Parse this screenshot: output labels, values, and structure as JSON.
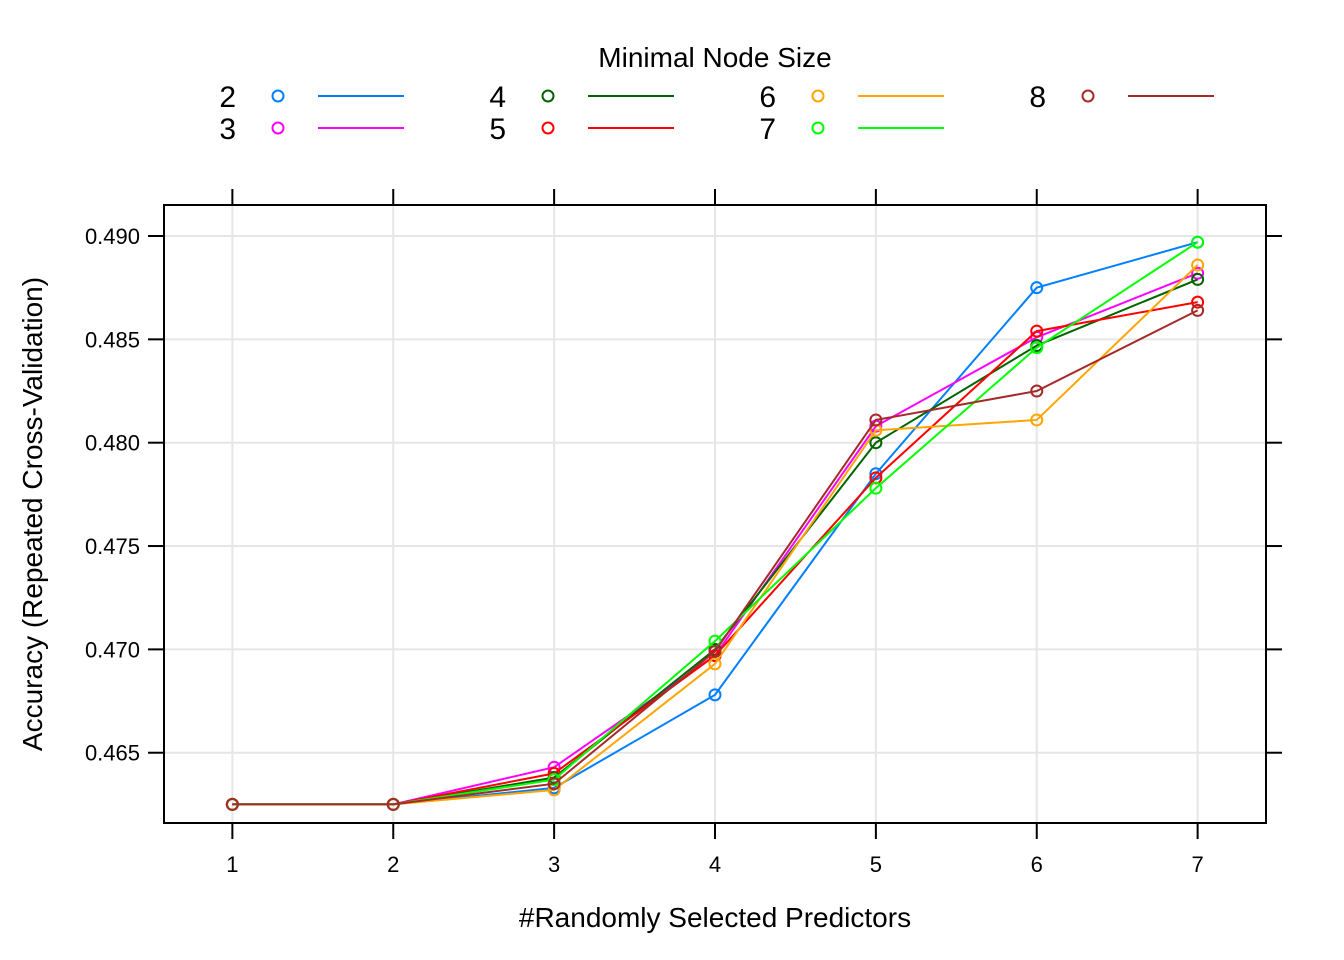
{
  "chart_data": {
    "type": "line",
    "xlabel": "#Randomly Selected Predictors",
    "ylabel": "Accuracy (Repeated Cross-Validation)",
    "legend_title": "Minimal Node Size",
    "legend_placement": "top",
    "grid": true,
    "x": [
      1,
      2,
      3,
      4,
      5,
      6,
      7
    ],
    "xlim": [
      0.575,
      7.425
    ],
    "ylim": [
      0.4616,
      0.4915
    ],
    "x_ticks": [
      "1",
      "2",
      "3",
      "4",
      "5",
      "6",
      "7"
    ],
    "y_ticks": [
      "0.465",
      "0.470",
      "0.475",
      "0.480",
      "0.485",
      "0.490"
    ],
    "y_tick_values": [
      0.465,
      0.47,
      0.475,
      0.48,
      0.485,
      0.49
    ],
    "series": [
      {
        "name": "2",
        "color": "#0080ff",
        "values": [
          0.4625,
          0.4625,
          0.4633,
          0.4678,
          0.4785,
          0.4875,
          0.4897
        ]
      },
      {
        "name": "3",
        "color": "#ff00ff",
        "values": [
          0.4625,
          0.4625,
          0.4643,
          0.4697,
          0.4808,
          0.4851,
          0.4882
        ]
      },
      {
        "name": "4",
        "color": "#006400",
        "values": [
          0.4625,
          0.4625,
          0.4638,
          0.47,
          0.48,
          0.4847,
          0.4879
        ]
      },
      {
        "name": "5",
        "color": "#ff0000",
        "values": [
          0.4625,
          0.4625,
          0.464,
          0.4697,
          0.4783,
          0.4854,
          0.4868
        ]
      },
      {
        "name": "6",
        "color": "#ffa500",
        "values": [
          0.4625,
          0.4625,
          0.4632,
          0.4693,
          0.4806,
          0.4811,
          0.4886
        ]
      },
      {
        "name": "7",
        "color": "#00ff00",
        "values": [
          0.4625,
          0.4625,
          0.4637,
          0.4704,
          0.4778,
          0.4846,
          0.4897
        ]
      },
      {
        "name": "8",
        "color": "#a52a2a",
        "values": [
          0.4625,
          0.4625,
          0.4635,
          0.4699,
          0.4811,
          0.4825,
          0.4864
        ]
      }
    ]
  }
}
